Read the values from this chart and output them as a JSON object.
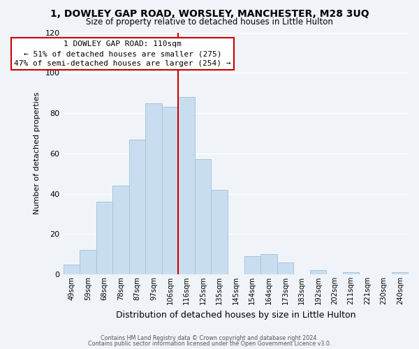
{
  "title_line1": "1, DOWLEY GAP ROAD, WORSLEY, MANCHESTER, M28 3UQ",
  "title_line2": "Size of property relative to detached houses in Little Hulton",
  "xlabel": "Distribution of detached houses by size in Little Hulton",
  "ylabel": "Number of detached properties",
  "bar_labels": [
    "49sqm",
    "59sqm",
    "68sqm",
    "78sqm",
    "87sqm",
    "97sqm",
    "106sqm",
    "116sqm",
    "125sqm",
    "135sqm",
    "145sqm",
    "154sqm",
    "164sqm",
    "173sqm",
    "183sqm",
    "192sqm",
    "202sqm",
    "211sqm",
    "221sqm",
    "230sqm",
    "240sqm"
  ],
  "bar_values": [
    5,
    12,
    36,
    44,
    67,
    85,
    83,
    88,
    57,
    42,
    0,
    9,
    10,
    6,
    0,
    2,
    0,
    1,
    0,
    0,
    1
  ],
  "bar_color": "#c8def0",
  "bar_edgecolor": "#a8c4dc",
  "vline_x": 6.5,
  "vline_color": "#cc0000",
  "annotation_title": "1 DOWLEY GAP ROAD: 110sqm",
  "annotation_line1": "← 51% of detached houses are smaller (275)",
  "annotation_line2": "47% of semi-detached houses are larger (254) →",
  "annotation_box_facecolor": "#ffffff",
  "annotation_box_edgecolor": "#cc0000",
  "ylim": [
    0,
    120
  ],
  "yticks": [
    0,
    20,
    40,
    60,
    80,
    100,
    120
  ],
  "footer_line1": "Contains HM Land Registry data © Crown copyright and database right 2024.",
  "footer_line2": "Contains public sector information licensed under the Open Government Licence v3.0.",
  "background_color": "#f0f4f8",
  "grid_color": "#ffffff",
  "grid_linewidth": 1.0
}
